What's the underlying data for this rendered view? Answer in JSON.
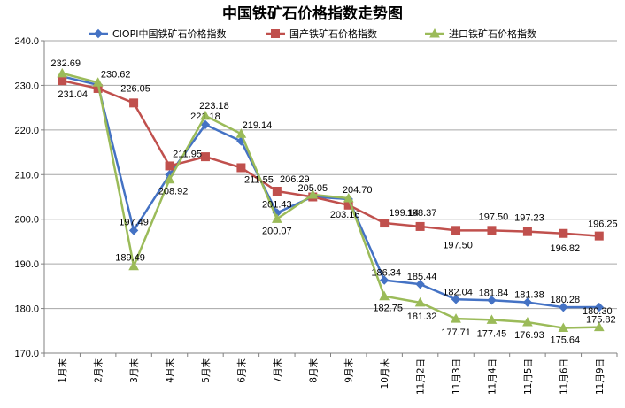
{
  "chart_data": {
    "type": "line",
    "title": "中国铁矿石价格指数走势图",
    "xlabel": "",
    "ylabel": "",
    "ylim": [
      170,
      240
    ],
    "yticks": [
      "170.0",
      "180.0",
      "190.0",
      "200.0",
      "210.0",
      "220.0",
      "230.0",
      "240.0"
    ],
    "grid": "horizontal",
    "legend_position": "top",
    "categories": [
      "1月末",
      "2月末",
      "3月末",
      "4月末",
      "5月末",
      "6月末",
      "7月末",
      "8月末",
      "9月末",
      "10月末",
      "11月2日",
      "11月3日",
      "11月4日",
      "11月5日",
      "11月6日",
      "11月9日"
    ],
    "series": [
      {
        "name": "CIOPI中国铁矿石价格指数",
        "color": "#4472C4",
        "marker": "diamond",
        "values": [
          232.0,
          230.1,
          197.49,
          210.0,
          221.18,
          217.5,
          201.43,
          205.05,
          204.5,
          186.34,
          185.44,
          182.04,
          181.84,
          181.38,
          180.28,
          180.3
        ],
        "labels": [
          "",
          "",
          "197.49",
          "",
          "221.18",
          "",
          "201.43",
          "205.05",
          "",
          "186.34",
          "185.44",
          "182.04",
          "181.84",
          "181.38",
          "180.28",
          "180.30"
        ]
      },
      {
        "name": "国产铁矿石价格指数",
        "color": "#C0504D",
        "marker": "square",
        "values": [
          231.04,
          229.3,
          226.05,
          211.95,
          214.0,
          211.55,
          206.29,
          205.0,
          203.16,
          199.14,
          198.37,
          197.5,
          197.5,
          197.23,
          196.82,
          196.25
        ],
        "labels": [
          "231.04",
          "",
          "226.05",
          "211.95",
          "",
          "211.55",
          "206.29",
          "",
          "203.16",
          "199.14",
          "198.37",
          "197.50",
          "197.50",
          "197.23",
          "196.82",
          "196.25"
        ]
      },
      {
        "name": "进口铁矿石价格指数",
        "color": "#9BBB59",
        "marker": "triangle",
        "values": [
          232.69,
          230.62,
          189.49,
          208.92,
          223.18,
          219.14,
          200.07,
          205.5,
          204.7,
          182.75,
          181.32,
          177.71,
          177.45,
          176.93,
          175.64,
          175.82
        ],
        "labels": [
          "232.69",
          "230.62",
          "189.49",
          "208.92",
          "223.18",
          "219.14",
          "200.07",
          "",
          "204.70",
          "182.75",
          "181.32",
          "177.71",
          "177.45",
          "176.93",
          "175.64",
          "175.82"
        ]
      }
    ]
  }
}
